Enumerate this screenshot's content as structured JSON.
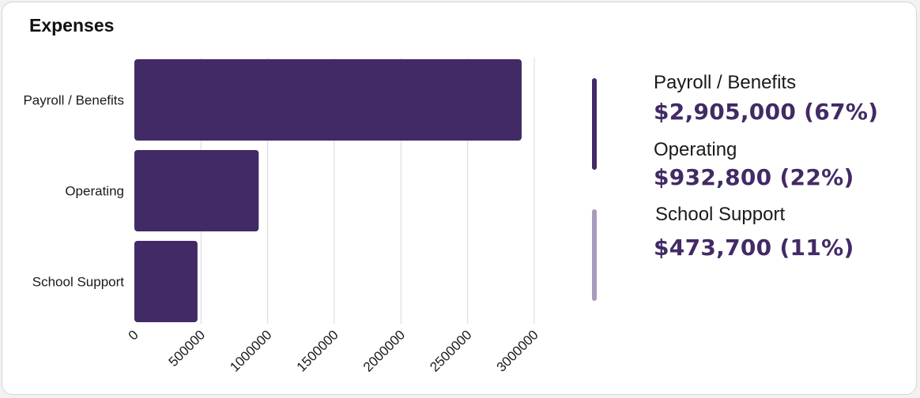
{
  "card": {
    "title": "Expenses"
  },
  "colors": {
    "bar": "#422a66",
    "legend_primary": "#422a66",
    "legend_secondary": "#a79bbd",
    "grid": "#d9d9d9",
    "tick_text": "#1a1a1a"
  },
  "chart_data": {
    "type": "bar",
    "orientation": "horizontal",
    "title": "Expenses",
    "categories": [
      "Payroll / Benefits",
      "Operating",
      "School Support"
    ],
    "values": [
      2905000,
      932800,
      473700
    ],
    "xlim": [
      0,
      3000000
    ],
    "xticks": [
      "0",
      "500000",
      "1000000",
      "1500000",
      "2000000",
      "2500000",
      "3000000"
    ],
    "xlabel": "",
    "ylabel": "",
    "grid": true,
    "legend_position": "right"
  },
  "legend": {
    "items": [
      {
        "label": "Payroll / Benefits",
        "value": "$2,905,000 (67%)"
      },
      {
        "label": "Operating",
        "value": "$932,800 (22%)"
      },
      {
        "label": "School Support",
        "value": "$473,700 (11%)"
      }
    ]
  }
}
